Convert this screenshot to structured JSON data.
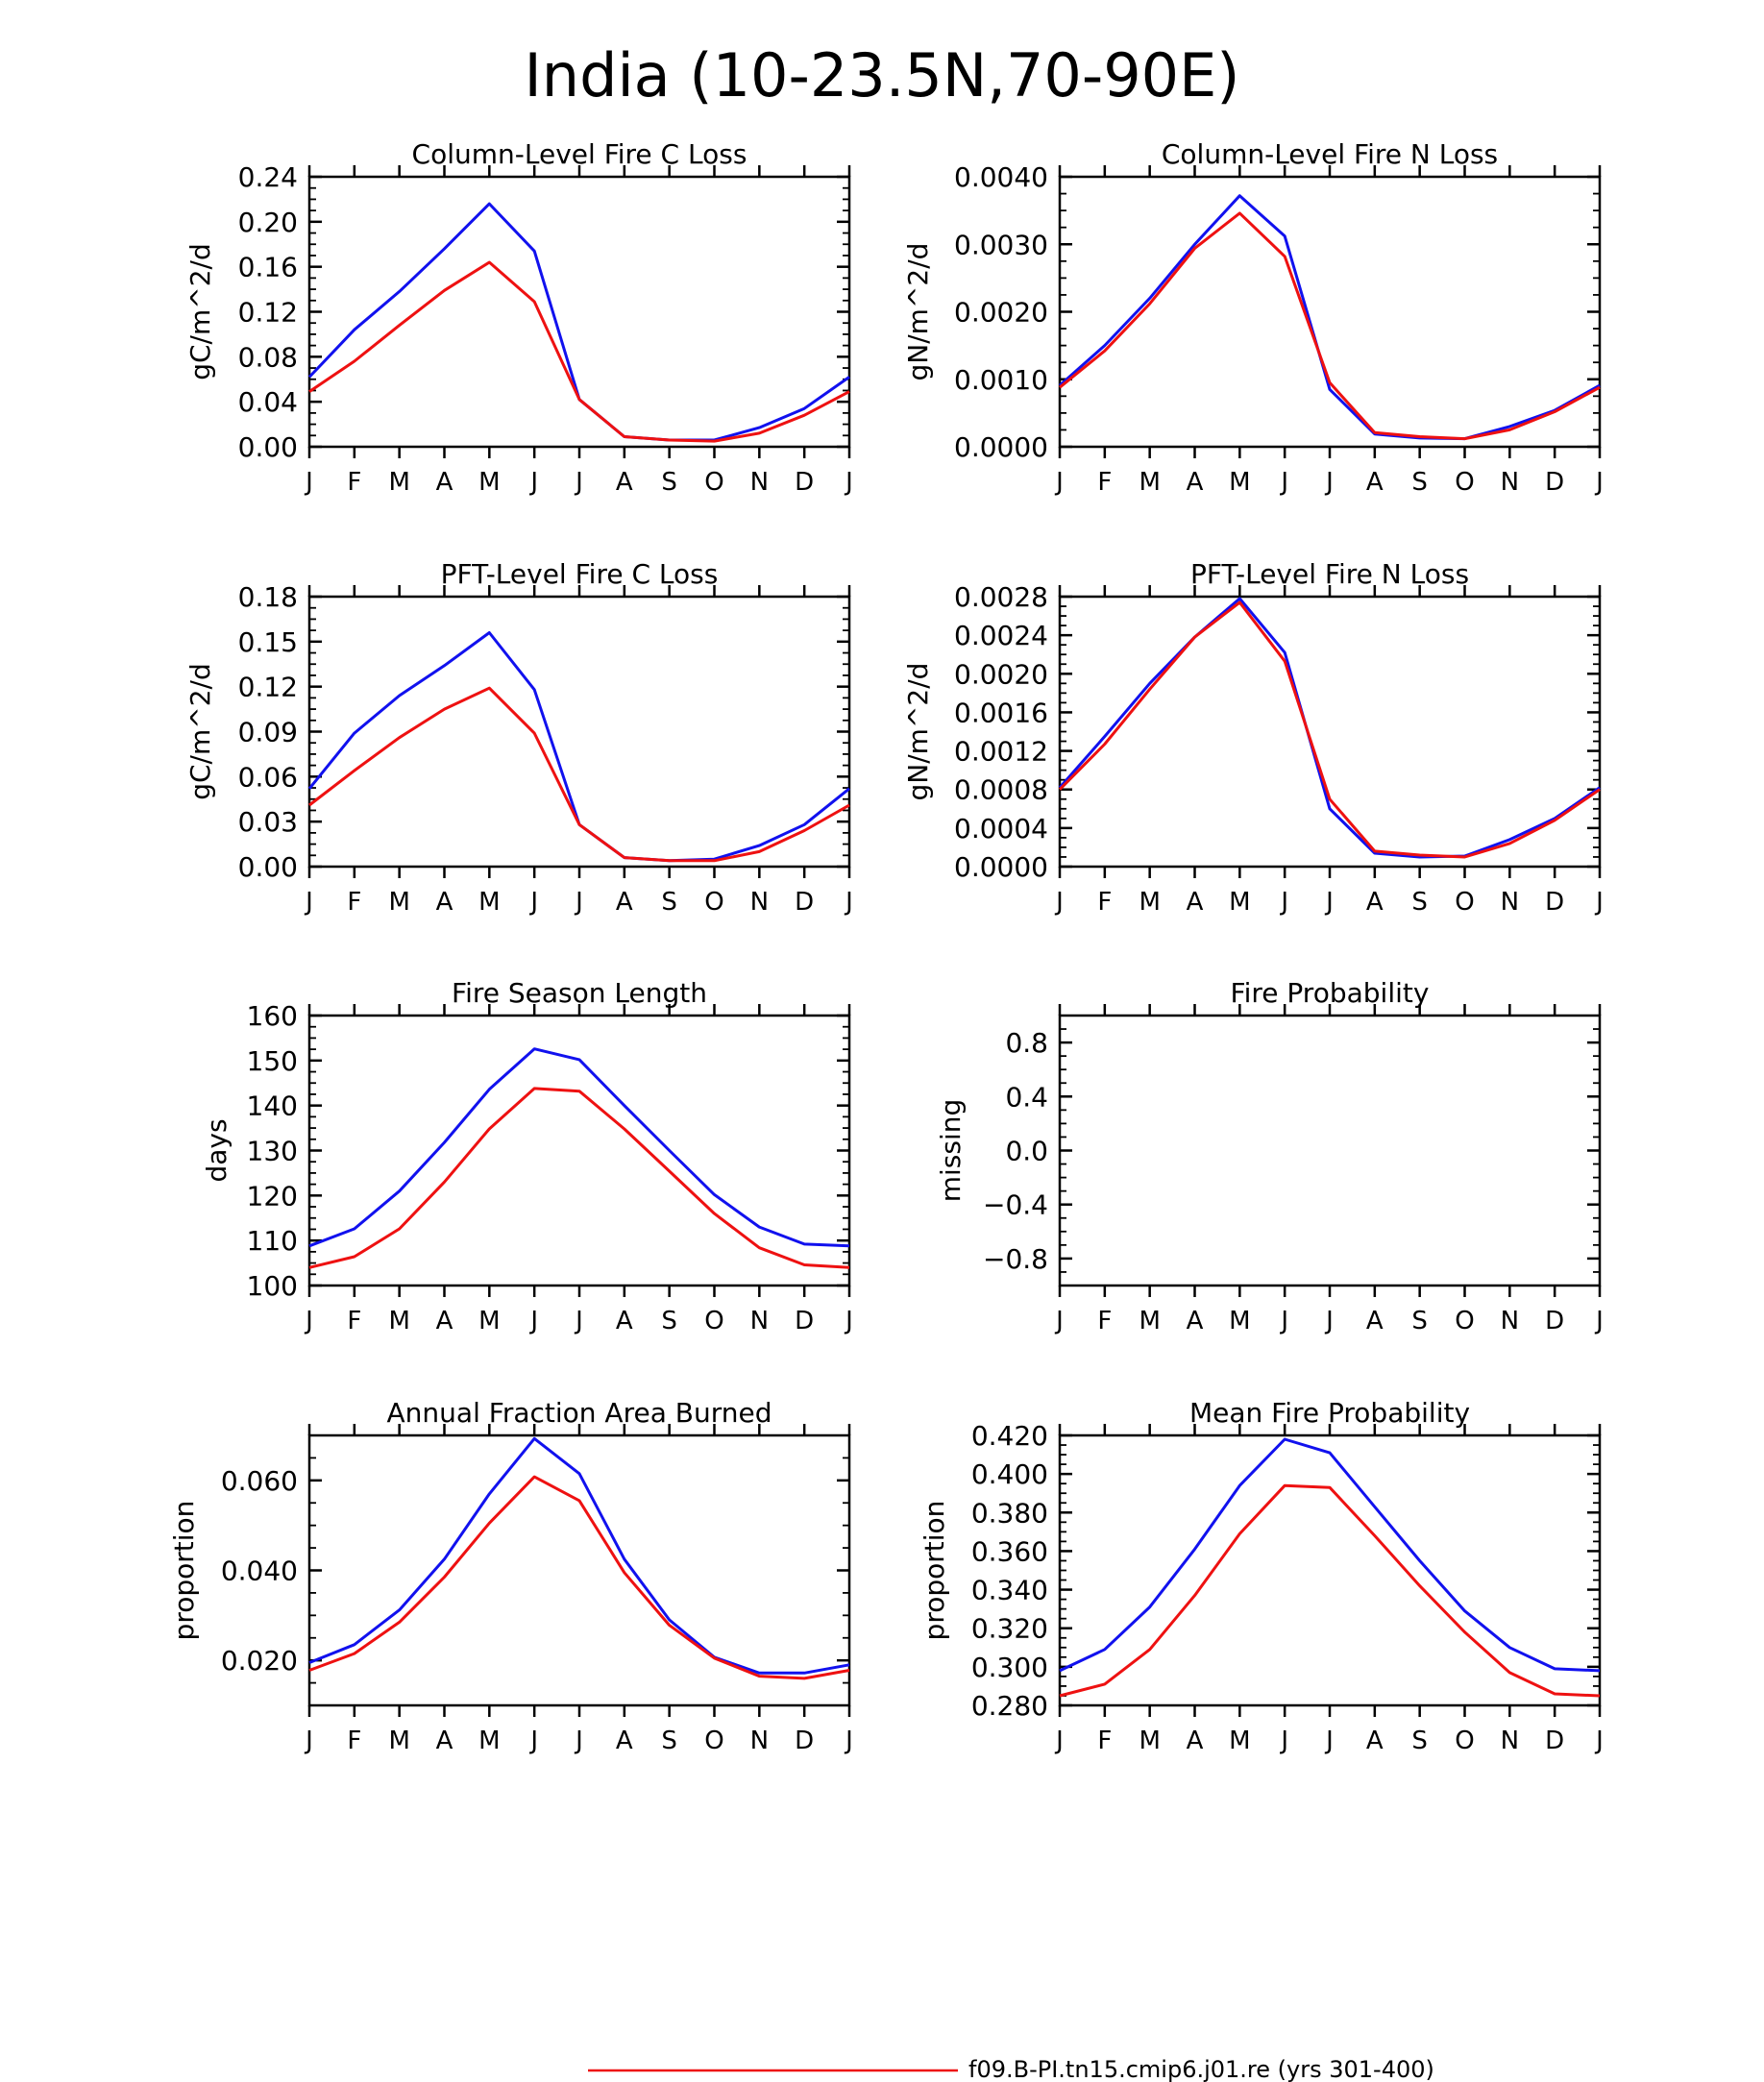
{
  "figure": {
    "title": "India (10-23.5N,70-90E)",
    "months": [
      "J",
      "F",
      "M",
      "A",
      "M",
      "J",
      "J",
      "A",
      "S",
      "O",
      "N",
      "D",
      "J"
    ],
    "legend": [
      {
        "name": "f09.B-PI.tn15.cmip6.j01.re (yrs 301-400)",
        "color": "#ee1111"
      }
    ],
    "colors": {
      "red": "#ee1111",
      "blue": "#1111ee"
    }
  },
  "chart_data": [
    {
      "type": "line",
      "title": "Column-Level Fire C Loss",
      "ylabel": "gC/m^2/d",
      "ylim": [
        0,
        0.24
      ],
      "yticks": [
        "0.00",
        "0.04",
        "0.08",
        "0.12",
        "0.16",
        "0.20",
        "0.24"
      ],
      "x": [
        "J",
        "F",
        "M",
        "A",
        "M",
        "J",
        "J",
        "A",
        "S",
        "O",
        "N",
        "D",
        "J"
      ],
      "series": [
        {
          "color": "#1111ee",
          "values": [
            0.062,
            0.104,
            0.138,
            0.176,
            0.216,
            0.174,
            0.042,
            0.009,
            0.006,
            0.006,
            0.017,
            0.034,
            0.062
          ]
        },
        {
          "color": "#ee1111",
          "values": [
            0.049,
            0.076,
            0.108,
            0.139,
            0.164,
            0.129,
            0.042,
            0.009,
            0.006,
            0.005,
            0.012,
            0.028,
            0.049
          ]
        }
      ]
    },
    {
      "type": "line",
      "title": "Column-Level Fire N Loss",
      "ylabel": "gN/m^2/d",
      "ylim": [
        0,
        0.004
      ],
      "yticks": [
        "0.0000",
        "0.0010",
        "0.0020",
        "0.0030",
        "0.0040"
      ],
      "x": [
        "J",
        "F",
        "M",
        "A",
        "M",
        "J",
        "J",
        "A",
        "S",
        "O",
        "N",
        "D",
        "J"
      ],
      "series": [
        {
          "color": "#1111ee",
          "values": [
            0.00091,
            0.0015,
            0.0022,
            0.003,
            0.00372,
            0.00312,
            0.00085,
            0.00019,
            0.00013,
            0.00012,
            0.0003,
            0.00054,
            0.00091
          ]
        },
        {
          "color": "#ee1111",
          "values": [
            0.00088,
            0.00142,
            0.00212,
            0.00294,
            0.00346,
            0.00282,
            0.00095,
            0.00021,
            0.00015,
            0.00012,
            0.00025,
            0.00052,
            0.00088
          ]
        }
      ]
    },
    {
      "type": "line",
      "title": "PFT-Level Fire C Loss",
      "ylabel": "gC/m^2/d",
      "ylim": [
        0,
        0.18
      ],
      "yticks": [
        "0.00",
        "0.03",
        "0.06",
        "0.09",
        "0.12",
        "0.15",
        "0.18"
      ],
      "x": [
        "J",
        "F",
        "M",
        "A",
        "M",
        "J",
        "J",
        "A",
        "S",
        "O",
        "N",
        "D",
        "J"
      ],
      "series": [
        {
          "color": "#1111ee",
          "values": [
            0.052,
            0.089,
            0.114,
            0.134,
            0.156,
            0.118,
            0.028,
            0.006,
            0.004,
            0.005,
            0.014,
            0.028,
            0.052
          ]
        },
        {
          "color": "#ee1111",
          "values": [
            0.041,
            0.064,
            0.086,
            0.105,
            0.119,
            0.089,
            0.028,
            0.006,
            0.004,
            0.004,
            0.01,
            0.024,
            0.041
          ]
        }
      ]
    },
    {
      "type": "line",
      "title": "PFT-Level Fire N Loss",
      "ylabel": "gN/m^2/d",
      "ylim": [
        0,
        0.0028
      ],
      "yticks": [
        "0.0000",
        "0.0004",
        "0.0008",
        "0.0012",
        "0.0016",
        "0.0020",
        "0.0024",
        "0.0028"
      ],
      "x": [
        "J",
        "F",
        "M",
        "A",
        "M",
        "J",
        "J",
        "A",
        "S",
        "O",
        "N",
        "D",
        "J"
      ],
      "series": [
        {
          "color": "#1111ee",
          "values": [
            0.00082,
            0.00135,
            0.0019,
            0.00238,
            0.00278,
            0.00222,
            0.0006,
            0.00014,
            0.0001,
            0.00011,
            0.00028,
            0.0005,
            0.00082
          ]
        },
        {
          "color": "#ee1111",
          "values": [
            0.0008,
            0.00127,
            0.00184,
            0.00238,
            0.00274,
            0.00213,
            0.0007,
            0.00016,
            0.00012,
            0.0001,
            0.00024,
            0.00048,
            0.0008
          ]
        }
      ]
    },
    {
      "type": "line",
      "title": "Fire Season Length",
      "ylabel": "days",
      "ylim": [
        100,
        160
      ],
      "yticks": [
        "100",
        "110",
        "120",
        "130",
        "140",
        "150",
        "160"
      ],
      "x": [
        "J",
        "F",
        "M",
        "A",
        "M",
        "J",
        "J",
        "A",
        "S",
        "O",
        "N",
        "D",
        "J"
      ],
      "series": [
        {
          "color": "#1111ee",
          "values": [
            108.8,
            112.6,
            121.0,
            131.8,
            143.6,
            152.6,
            150.2,
            140.0,
            130.0,
            120.2,
            113.0,
            109.2,
            108.8
          ]
        },
        {
          "color": "#ee1111",
          "values": [
            104.0,
            106.4,
            112.6,
            123.0,
            134.8,
            143.8,
            143.2,
            134.8,
            125.4,
            116.0,
            108.4,
            104.6,
            104.0
          ]
        }
      ]
    },
    {
      "type": "line",
      "title": "Fire Probability",
      "ylabel": "missing",
      "ylim": [
        -1,
        1
      ],
      "yticks": [
        "-0.8",
        "-0.4",
        "0.0",
        "0.4",
        "0.8"
      ],
      "x": [
        "J",
        "F",
        "M",
        "A",
        "M",
        "J",
        "J",
        "A",
        "S",
        "O",
        "N",
        "D",
        "J"
      ],
      "series": []
    },
    {
      "type": "line",
      "title": "Annual Fraction Area Burned",
      "ylabel": "proportion",
      "ylim": [
        0.01,
        0.07
      ],
      "yticks": [
        "0.020",
        "0.040",
        "0.060"
      ],
      "x": [
        "J",
        "F",
        "M",
        "A",
        "M",
        "J",
        "J",
        "A",
        "S",
        "O",
        "N",
        "D",
        "J"
      ],
      "series": [
        {
          "color": "#1111ee",
          "values": [
            0.0195,
            0.0235,
            0.0312,
            0.0425,
            0.057,
            0.0693,
            0.0615,
            0.0425,
            0.029,
            0.0207,
            0.0172,
            0.0172,
            0.019
          ]
        },
        {
          "color": "#ee1111",
          "values": [
            0.0178,
            0.0215,
            0.0285,
            0.0385,
            0.0505,
            0.0608,
            0.0555,
            0.0395,
            0.0278,
            0.0205,
            0.0165,
            0.016,
            0.0178
          ]
        }
      ]
    },
    {
      "type": "line",
      "title": "Mean Fire Probability",
      "ylabel": "proportion",
      "ylim": [
        0.28,
        0.42
      ],
      "yticks": [
        "0.280",
        "0.300",
        "0.320",
        "0.340",
        "0.360",
        "0.380",
        "0.400",
        "0.420"
      ],
      "x": [
        "J",
        "F",
        "M",
        "A",
        "M",
        "J",
        "J",
        "A",
        "S",
        "O",
        "N",
        "D",
        "J"
      ],
      "series": [
        {
          "color": "#1111ee",
          "values": [
            0.298,
            0.309,
            0.331,
            0.361,
            0.394,
            0.418,
            0.411,
            0.383,
            0.355,
            0.329,
            0.31,
            0.299,
            0.298
          ]
        },
        {
          "color": "#ee1111",
          "values": [
            0.285,
            0.291,
            0.309,
            0.337,
            0.369,
            0.394,
            0.393,
            0.368,
            0.342,
            0.318,
            0.297,
            0.286,
            0.285
          ]
        }
      ]
    }
  ]
}
